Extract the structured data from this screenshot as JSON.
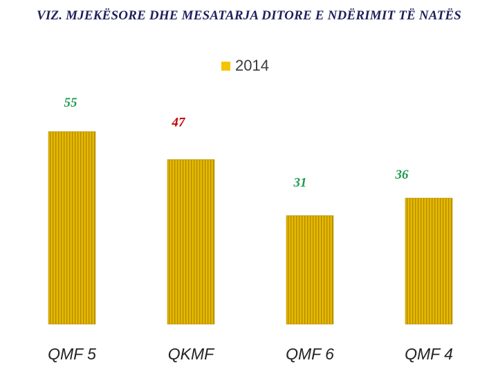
{
  "chart_data": {
    "type": "bar",
    "title": "VIZ. MJEKËSORE DHE MESATARJA DITORE E NDËRIMIT TË NATËS",
    "xlabel": "",
    "ylabel": "",
    "categories": [
      "QMF 5",
      "QKMF",
      "QMF 6",
      "QMF 4"
    ],
    "series": [
      {
        "name": "2014",
        "values": [
          55,
          47,
          31,
          36
        ],
        "data_labels": [
          "55",
          "47",
          "31",
          "36"
        ],
        "label_colors": [
          "#1e9b4f",
          "#c00000",
          "#1e9b4f",
          "#1e9b4f"
        ]
      }
    ],
    "ylim": [
      0,
      55
    ],
    "grid": false,
    "legend": "top-center",
    "colors": {
      "bar": "#e6b800",
      "bar_stripe": "#b08c00",
      "legend_swatch": "#f5c400"
    }
  }
}
